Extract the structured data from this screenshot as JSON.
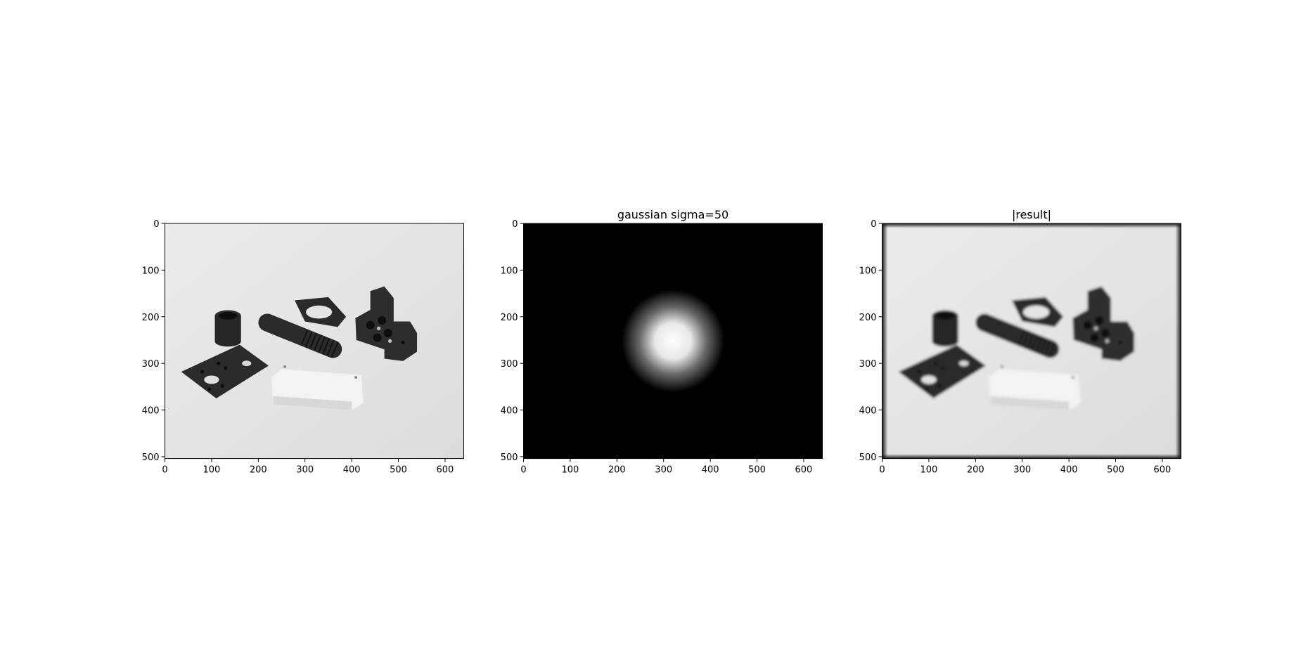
{
  "chart_data": [
    {
      "type": "image",
      "title": "",
      "image_description": "grayscale photo of machined parts: black tube, threaded rod, ring, plate with holes, block, white block",
      "xlim": [
        0,
        640
      ],
      "ylim": [
        504,
        0
      ],
      "xticks": [
        0,
        100,
        200,
        300,
        400,
        500,
        600
      ],
      "yticks": [
        0,
        100,
        200,
        300,
        400,
        500
      ]
    },
    {
      "type": "image",
      "title": "gaussian sigma=50",
      "image_description": "black field with a single blurred white gaussian blob",
      "gaussian": {
        "center": [
          320,
          252
        ],
        "sigma": 50
      },
      "xlim": [
        0,
        640
      ],
      "ylim": [
        504,
        0
      ],
      "xticks": [
        0,
        100,
        200,
        300,
        400,
        500,
        600
      ],
      "yticks": [
        0,
        100,
        200,
        300,
        400,
        500
      ]
    },
    {
      "type": "image",
      "title": "|result|",
      "image_description": "blurred version of the parts photo with dark border artifacts",
      "xlim": [
        0,
        640
      ],
      "ylim": [
        504,
        0
      ],
      "xticks": [
        0,
        100,
        200,
        300,
        400,
        500,
        600
      ],
      "yticks": [
        0,
        100,
        200,
        300,
        400,
        500
      ]
    }
  ],
  "colors": {
    "background": "#ffffff",
    "image_light": "#e6e6e6",
    "object_dark": "#262626",
    "object_white": "#f7f7f7",
    "axis": "#000000"
  }
}
